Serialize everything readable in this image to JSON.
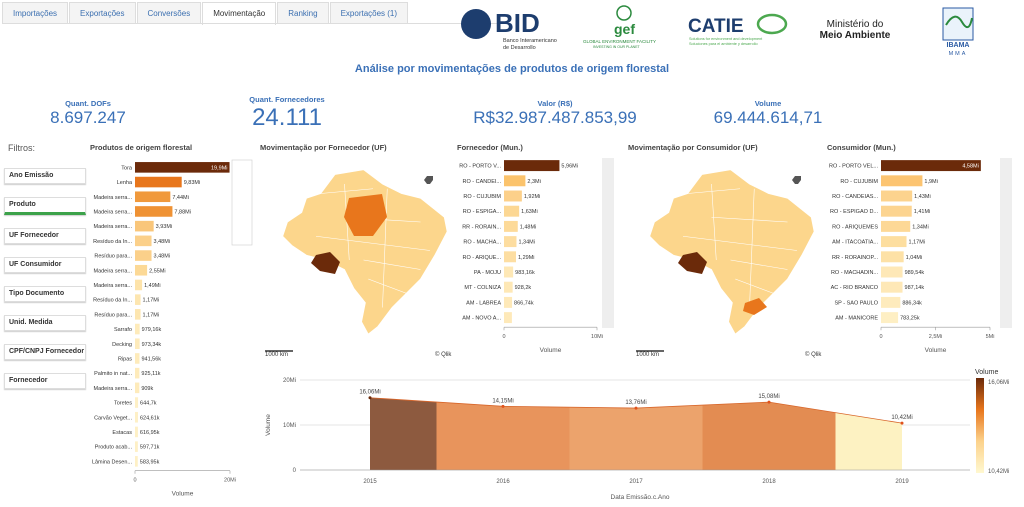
{
  "tabs": [
    "Importações",
    "Exportações",
    "Conversões",
    "Movimentação",
    "Ranking",
    "Exportações (1)"
  ],
  "active_tab": 3,
  "logos": {
    "bid": "BID",
    "bid_sub1": "Banco Interamericano",
    "bid_sub2": "de Desarrollo",
    "gef": "gef",
    "gef_sub1": "GLOBAL ENVIRONMENT FACILITY",
    "gef_sub2": "INVESTING IN OUR PLANET",
    "catie": "CATIE",
    "catie_sub1": "Solutions for environment and development",
    "catie_sub2": "Soluciones para el ambiente y desarrollo",
    "ministerio1": "Ministério do",
    "ministerio2": "Meio Ambiente",
    "ibama": "IBAMA",
    "mma": "MMA"
  },
  "title": "Análise por movimentações de produtos de origem florestal",
  "kpis": [
    {
      "label": "Quant. DOFs",
      "value": "8.697.247"
    },
    {
      "label": "Quant. Fornecedores",
      "value": "24.111"
    },
    {
      "label": "Valor (R$)",
      "value": "R$32.987.487.853,99"
    },
    {
      "label": "Volume",
      "value": "69.444.614,71"
    }
  ],
  "filters": {
    "label": "Filtros:",
    "items": [
      "Ano Emissão",
      "Produto",
      "UF Fornecedor",
      "UF Consumidor",
      "Tipo Documento",
      "Unid. Medida",
      "CPF/CNPJ Fornecedor",
      "Fornecedor"
    ],
    "selected": 1
  },
  "products_chart": {
    "type": "bar",
    "title": "Produtos de origem florestal",
    "categories": [
      "Tora",
      "Lenha",
      "Madeira serra...",
      "Madeira serra...",
      "Madeira serra...",
      "Resíduo da In...",
      "Resíduo para...",
      "Madeira serra...",
      "Madeira serra...",
      "Resíduo da In...",
      "Resíduo para...",
      "Sarrafo",
      "Decking",
      "Ripas",
      "Palmito in nat...",
      "Madeira serra...",
      "Toretes",
      "Carvão Veget...",
      "Estacas",
      "Produto acab...",
      "Lâmina Desen..."
    ],
    "values": [
      19900000,
      9830000,
      7440000,
      7880000,
      3930000,
      3480000,
      3480000,
      2550000,
      1490000,
      1170000,
      1170000,
      979160,
      973340,
      941560,
      925110,
      909000,
      644700,
      624610,
      616950,
      597710,
      583950
    ],
    "value_labels": [
      "19,9Mi",
      "9,83Mi",
      "7,44Mi",
      "7,88Mi",
      "3,93Mi",
      "3,48Mi",
      "3,48Mi",
      "2,55Mi",
      "1,49Mi",
      "1,17Mi",
      "1,17Mi",
      "979,16k",
      "973,34k",
      "941,56k",
      "925,11k",
      "909k",
      "644,7k",
      "624,61k",
      "616,95k",
      "597,71k",
      "583,95k"
    ],
    "colors": [
      "#6b2a0a",
      "#e8761c",
      "#f0993c",
      "#ef9234",
      "#f9c67a",
      "#fbd08a",
      "#fbd08a",
      "#fcd996",
      "#fde3aa",
      "#fde6b0",
      "#fde6b0",
      "#feebbb",
      "#feebbb",
      "#feebbb",
      "#feebbb",
      "#feebbb",
      "#fef0c6",
      "#fef0c6",
      "#fef0c6",
      "#fef0c6",
      "#fef0c6"
    ],
    "xlim": [
      0,
      20000000
    ],
    "xticks": [
      0,
      {
        "value": 20000000,
        "label": "20Mi"
      }
    ],
    "x_label": "Volume"
  },
  "supplier_map": {
    "title": "Movimentação por Fornecedor (UF)",
    "scale_label": "1000 km",
    "credit": "© Qlik"
  },
  "supplier_chart": {
    "type": "bar",
    "title": "Fornecedor (Mun.)",
    "categories": [
      "RO - PORTO V...",
      "RO - CANDEI...",
      "RO - CUJUBIM",
      "RO - ESPIGA...",
      "RR - RORAIN...",
      "RO - MACHA...",
      "RO - ARIQUE...",
      "PA - MOJU",
      "MT - COLNIZA",
      "AM - LABREA",
      "AM - NOVO A..."
    ],
    "values": [
      5960000,
      2300000,
      1920000,
      1630000,
      1480000,
      1340000,
      1290000,
      983160,
      928200,
      866740,
      850000
    ],
    "value_labels": [
      "5,96Mi",
      "2,3Mi",
      "1,92Mi",
      "1,63Mi",
      "1,48Mi",
      "1,34Mi",
      "1,29Mi",
      "983,16k",
      "928,2k",
      "866,74k",
      null
    ],
    "colors": [
      "#6b2a0a",
      "#fbc36c",
      "#fcd08a",
      "#fcd793",
      "#fdda99",
      "#fddda0",
      "#fddea2",
      "#fee8b6",
      "#fee8b6",
      "#fee9b9",
      "#fee9b9"
    ],
    "xlim": [
      0,
      10000000
    ],
    "xticks": [
      0,
      {
        "value": 10000000,
        "label": "10Mi"
      }
    ],
    "x_label": "Volume"
  },
  "consumer_map": {
    "title": "Movimentação por Consumidor (UF)",
    "scale_label": "1000 km",
    "credit": "© Qlik"
  },
  "consumer_chart": {
    "type": "bar",
    "title": "Consumidor (Mun.)",
    "categories": [
      "RO - PORTO VEL...",
      "RO - CUJUBIM",
      "RO - CANDEIAS...",
      "RO - ESPIGAO D...",
      "RO - ARIQUEMES",
      "AM - ITACOATIA...",
      "RR - RORAINOP...",
      "RO - MACHADIN...",
      "AC - RIO BRANCO",
      "SP - SAO PAULO",
      "AM - MANICORE"
    ],
    "values": [
      4580000,
      1900000,
      1430000,
      1410000,
      1340000,
      1170000,
      1040000,
      989540,
      987140,
      886340,
      783250
    ],
    "value_labels": [
      "4,58Mi",
      "1,9Mi",
      "1,43Mi",
      "1,41Mi",
      "1,34Mi",
      "1,17Mi",
      "1,04Mi",
      "989,54k",
      "987,14k",
      "886,34k",
      "783,25k"
    ],
    "colors": [
      "#6b2a0a",
      "#fcc471",
      "#fcd38e",
      "#fcd490",
      "#fdd896",
      "#fdde9f",
      "#fde1a6",
      "#fee8b7",
      "#fee8b7",
      "#feebbd",
      "#feefc4"
    ],
    "xlim": [
      0,
      5000000
    ],
    "xticks": [
      0,
      {
        "value": 2500000,
        "label": "2,5Mi"
      },
      {
        "value": 5000000,
        "label": "5Mi"
      }
    ],
    "x_label": "Volume"
  },
  "timeline_chart": {
    "type": "area",
    "categories": [
      "2015",
      "2016",
      "2017",
      "2018",
      "2019"
    ],
    "values": [
      16060000,
      14150000,
      13760000,
      15080000,
      10420000
    ],
    "value_labels": [
      "16,06Mi",
      "14,15Mi",
      "13,76Mi",
      "15,08Mi",
      "10,42Mi"
    ],
    "colors": [
      "#8d5a3f",
      "#e8945c",
      "#eca36c",
      "#e38c52",
      "#fdf2c2"
    ],
    "ylim": [
      0,
      20000000
    ],
    "yticks": [
      0,
      {
        "value": 10000000,
        "label": "10Mi"
      },
      {
        "value": 20000000,
        "label": "20Mi"
      }
    ],
    "y_label": "Volume",
    "x_label": "Data Emissão.c.Ano",
    "legend": {
      "title": "Volume",
      "max_label": "16,06Mi",
      "min_label": "10,42Mi",
      "colors": [
        "#6b2a0a",
        "#e8761c",
        "#fcd28c",
        "#fff8d0"
      ]
    }
  }
}
